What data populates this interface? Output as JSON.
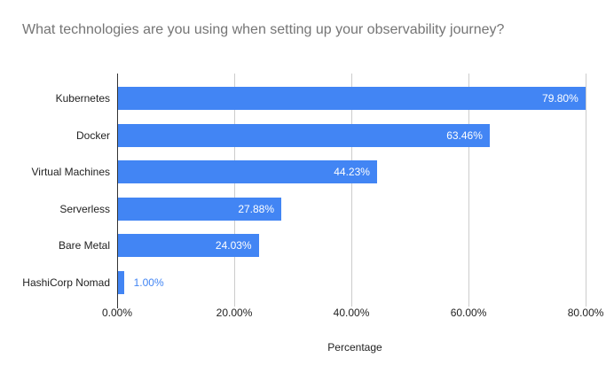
{
  "chart_data": {
    "type": "bar",
    "orientation": "horizontal",
    "title": "What technologies are you using when setting up your observability journey?",
    "categories": [
      "Kubernetes",
      "Docker",
      "Virtual Machines",
      "Serverless",
      "Bare Metal",
      "HashiCorp Nomad"
    ],
    "values": [
      79.8,
      63.46,
      44.23,
      27.88,
      24.03,
      1.0
    ],
    "value_labels": [
      "79.80%",
      "63.46%",
      "44.23%",
      "27.88%",
      "24.03%",
      "1.00%"
    ],
    "xlabel": "Percentage",
    "ylabel": "",
    "x_ticks": [
      {
        "value": 0,
        "label": "0.00%"
      },
      {
        "value": 20,
        "label": "20.00%"
      },
      {
        "value": 40,
        "label": "40.00%"
      },
      {
        "value": 60,
        "label": "60.00%"
      },
      {
        "value": 80,
        "label": "80.00%"
      }
    ],
    "xlim": [
      0,
      81.2
    ],
    "grid": true,
    "legend": "none",
    "colors": {
      "bar": "#4285f4",
      "title_text": "#757575",
      "axis_text": "#222222",
      "gridline": "#cccccc",
      "baseline": "#333333",
      "value_label_inside": "#ffffff",
      "value_label_outside": "#4285f4",
      "background": "#ffffff"
    }
  }
}
